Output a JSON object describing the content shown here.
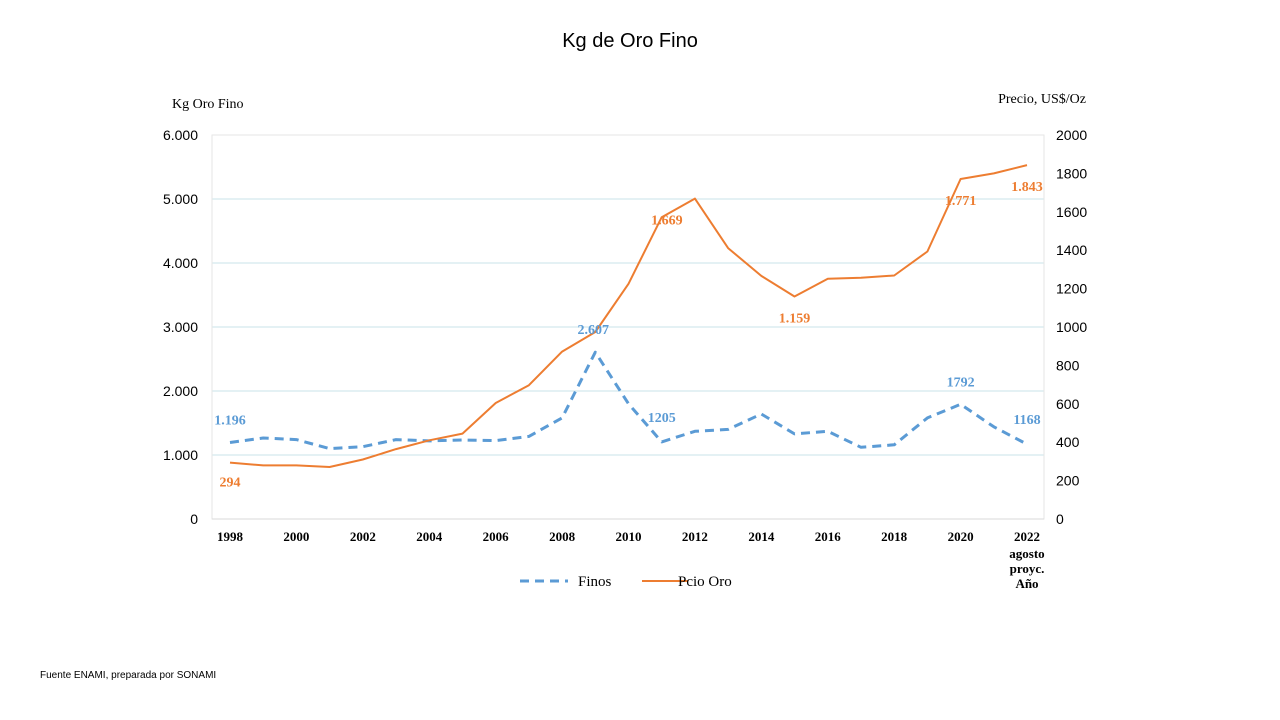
{
  "source": "Fuente ENAMI, preparada por SONAMI",
  "colors": {
    "finos": "#5B9BD5",
    "precio": "#ED7D31",
    "grid": "#C9E3EA"
  },
  "chart_data": {
    "type": "line",
    "title": "Kg de Oro Fino",
    "y_left_label": "Kg Oro Fino",
    "y_right_label": "Precio,  US$/Oz",
    "y_left_lim": [
      0,
      6000
    ],
    "y_right_lim": [
      0,
      2000
    ],
    "y_left_ticks": [
      "0",
      "1.000",
      "2.000",
      "3.000",
      "4.000",
      "5.000",
      "6.000"
    ],
    "y_right_ticks": [
      "0",
      "200",
      "400",
      "600",
      "800",
      "1000",
      "1200",
      "1400",
      "1600",
      "1800",
      "2000"
    ],
    "x": [
      1998,
      1999,
      2000,
      2001,
      2002,
      2003,
      2004,
      2005,
      2006,
      2007,
      2008,
      2009,
      2010,
      2011,
      2012,
      2013,
      2014,
      2015,
      2016,
      2017,
      2018,
      2019,
      2020,
      2021,
      2022
    ],
    "x_tick_labels": [
      "1998",
      "2000",
      "2002",
      "2004",
      "2006",
      "2008",
      "2010",
      "2012",
      "2014",
      "2016",
      "2018",
      "2020",
      "2022"
    ],
    "x_last_note": [
      "agosto",
      "proyc.",
      "Año"
    ],
    "grid": "horizontal",
    "legend_position": "bottom",
    "series": [
      {
        "name": "Finos",
        "axis": "left",
        "style": "dashed",
        "values": [
          1196,
          1265,
          1240,
          1100,
          1130,
          1240,
          1220,
          1235,
          1225,
          1290,
          1580,
          2607,
          1800,
          1205,
          1370,
          1400,
          1640,
          1330,
          1370,
          1120,
          1160,
          1580,
          1792,
          1440,
          1168
        ],
        "labels": {
          "0": "1.196",
          "11": "2.607",
          "13": "1205",
          "22": "1792",
          "24": "1168"
        }
      },
      {
        "name": "Pcio Oro",
        "axis": "right",
        "style": "solid",
        "values": [
          294,
          279,
          279,
          271,
          310,
          364,
          410,
          445,
          604,
          697,
          872,
          974,
          1225,
          1572,
          1669,
          1411,
          1266,
          1159,
          1251,
          1257,
          1268,
          1393,
          1771,
          1800,
          1843
        ],
        "labels": {
          "0": "294",
          "14": "1.669",
          "17": "1.159",
          "22": "1.771",
          "24": "1.843"
        }
      }
    ]
  }
}
